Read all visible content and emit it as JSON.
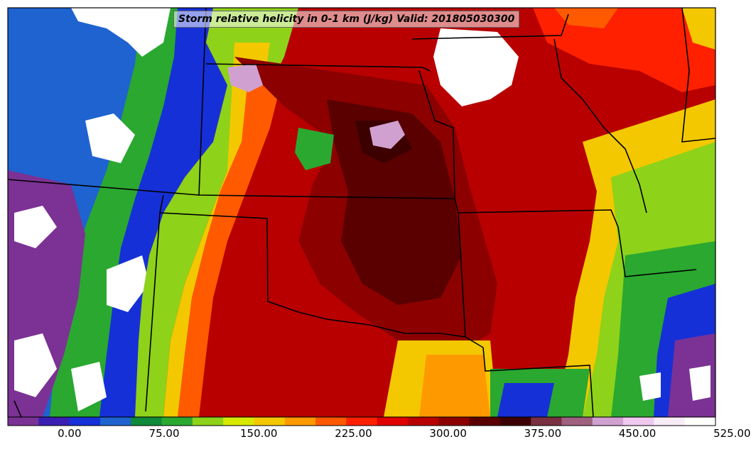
{
  "title": "Storm relative helicity in 0-1 km (J/kg) Valid: 201805030300",
  "colorbar": {
    "colors": [
      "#7b3294",
      "#3a1fb4",
      "#1630d8",
      "#1e63d0",
      "#0f8a3a",
      "#2aa830",
      "#8ed21a",
      "#d6e800",
      "#f3c800",
      "#ff9900",
      "#ff5a00",
      "#ff2000",
      "#e00000",
      "#b80000",
      "#8c0000",
      "#5a0000",
      "#3c0000",
      "#7a3040",
      "#a06080",
      "#d0a0d0",
      "#f0c8f0",
      "#f8ecf8",
      "#ffffff"
    ],
    "tick_labels": [
      "0.00",
      "75.00",
      "150.00",
      "225.00",
      "300.00",
      "375.00",
      "450.00",
      "525.00"
    ]
  },
  "chart_data": {
    "type": "heatmap",
    "variable": "Storm relative helicity in 0-1 km",
    "units": "J/kg",
    "valid_time": "201805030300",
    "levels": [
      -50,
      -25,
      0,
      25,
      50,
      75,
      100,
      125,
      150,
      175,
      200,
      225,
      250,
      275,
      300,
      325,
      350,
      375,
      400,
      425,
      450,
      475,
      500,
      525,
      550
    ],
    "tick_labels": [
      "0.00",
      "75.00",
      "150.00",
      "225.00",
      "300.00",
      "375.00",
      "450.00",
      "525.00"
    ]
  }
}
